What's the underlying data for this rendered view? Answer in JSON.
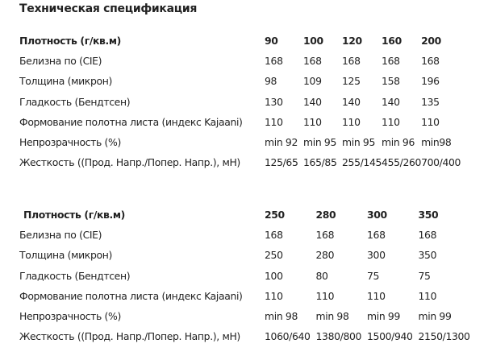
{
  "title": "Техническая спецификация",
  "tables": [
    {
      "header": {
        "label": "Плотность (г/кв.м)",
        "values": [
          "90",
          "100",
          "120",
          "160",
          "200"
        ]
      },
      "rows": [
        {
          "label": "Белизна по (CIE)",
          "values": [
            "168",
            "168",
            "168",
            "168",
            "168"
          ]
        },
        {
          "label": "Толщина (микрон)",
          "values": [
            "98",
            "109",
            "125",
            "158",
            "196"
          ]
        },
        {
          "label": "Гладкость (Бендтсен)",
          "values": [
            "130",
            "140",
            "140",
            "140",
            "135"
          ]
        },
        {
          "label": "Формование полотна листа (индекс Kajaani)",
          "values": [
            "110",
            "110",
            "110",
            "110",
            "110"
          ]
        },
        {
          "label": "Непрозрачность (%)",
          "values": [
            "min 92",
            "min 95",
            "min 95",
            "min 96",
            "min98"
          ]
        },
        {
          "label": "Жесткость ((Прод. Напр./Попер. Напр.), мН)",
          "values": [
            "125/65",
            "165/85",
            "255/145",
            "455/260",
            "700/400"
          ]
        }
      ]
    },
    {
      "header": {
        "label": "Плотность (г/кв.м)",
        "values": [
          "250",
          "280",
          "300",
          "350"
        ]
      },
      "rows": [
        {
          "label": "Белизна по (CIE)",
          "values": [
            "168",
            "168",
            "168",
            "168"
          ]
        },
        {
          "label": "Толщина (микрон)",
          "values": [
            "250",
            "280",
            "300",
            "350"
          ]
        },
        {
          "label": "Гладкость (Бендтсен)",
          "values": [
            "100",
            "80",
            "75",
            "75"
          ]
        },
        {
          "label": "Формование полотна листа (индекс Kajaani)",
          "values": [
            "110",
            "110",
            "110",
            "110"
          ]
        },
        {
          "label": "Непрозрачность (%)",
          "values": [
            "min 98",
            "min 98",
            "min 99",
            "min 99"
          ]
        },
        {
          "label": "Жесткость ((Прод. Напр./Попер. Напр.), мН)",
          "values": [
            "1060/640",
            "1380/800",
            "1500/940",
            "2150/1300"
          ]
        }
      ]
    }
  ]
}
